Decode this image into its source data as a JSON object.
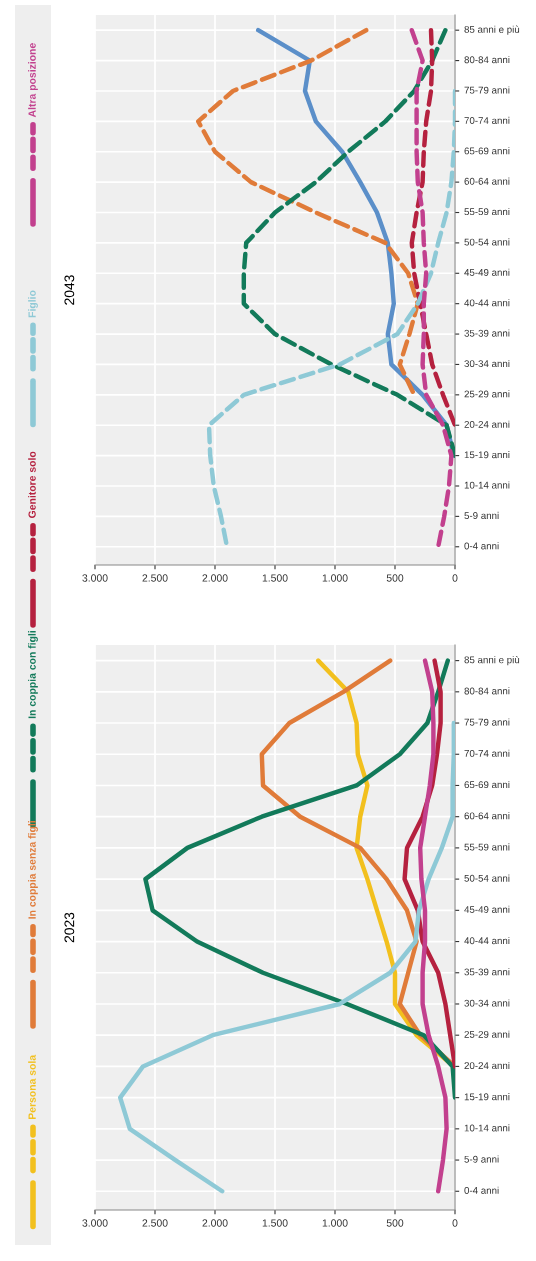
{
  "chart_data": [
    {
      "type": "line",
      "orientation": "horizontal",
      "title": "2023",
      "legend": "top",
      "grid": true,
      "categories": [
        "85 anni e più",
        "80-84 anni",
        "75-79 anni",
        "70-74 anni",
        "65-69 anni",
        "60-64 anni",
        "55-59 anni",
        "50-54 anni",
        "45-49 anni",
        "40-44 anni",
        "35-39 anni",
        "30-34 anni",
        "25-29 anni",
        "20-24 anni",
        "15-19 anni",
        "10-14 anni",
        "5-9 anni",
        "0-4 anni"
      ],
      "xlim": [
        3000,
        0
      ],
      "xticks": [
        {
          "value": 3000,
          "label": "3.000"
        },
        {
          "value": 2500,
          "label": "2.500"
        },
        {
          "value": 2000,
          "label": "2.000"
        },
        {
          "value": 1500,
          "label": "1.500"
        },
        {
          "value": 1000,
          "label": "1.000"
        },
        500,
        0
      ],
      "series": [
        {
          "name": "Persona sola",
          "color": "#f2c01e",
          "line_style": "solid",
          "values": [
            1140,
            890,
            820,
            810,
            730,
            790,
            820,
            730,
            650,
            570,
            500,
            500,
            320,
            10,
            null,
            null,
            null,
            null
          ]
        },
        {
          "name": "In coppia senza figli",
          "color": "#e07b39",
          "line_style": "solid",
          "values": [
            540,
            930,
            1380,
            1610,
            1600,
            1290,
            790,
            570,
            400,
            320,
            390,
            460,
            290,
            0,
            null,
            null,
            null,
            null
          ]
        },
        {
          "name": "In coppia con figli",
          "color": "#127a5a",
          "line_style": "solid",
          "values": [
            60,
            140,
            230,
            460,
            820,
            1610,
            2230,
            2580,
            2520,
            2150,
            1600,
            900,
            260,
            20,
            0,
            null,
            null,
            null
          ]
        },
        {
          "name": "Genitore solo",
          "color": "#b5213f",
          "line_style": "solid",
          "values": [
            170,
            120,
            120,
            150,
            190,
            270,
            400,
            420,
            310,
            270,
            140,
            80,
            40,
            0,
            null,
            null,
            null,
            null
          ]
        },
        {
          "name": "Figlio",
          "color": "#8ec9d6",
          "line_style": "solid",
          "values": [
            null,
            null,
            10,
            10,
            20,
            20,
            110,
            220,
            300,
            330,
            540,
            960,
            2020,
            2600,
            2790,
            2710,
            2330,
            1940
          ]
        },
        {
          "name": "Altra posizione",
          "color": "#c2408e",
          "line_style": "solid",
          "values": [
            250,
            190,
            180,
            180,
            210,
            250,
            290,
            280,
            250,
            250,
            270,
            270,
            220,
            140,
            80,
            70,
            100,
            140
          ]
        }
      ]
    },
    {
      "type": "line",
      "orientation": "horizontal",
      "title": "2043",
      "grid": true,
      "categories": [
        "85 anni e più",
        "80-84 anni",
        "75-79 anni",
        "70-74 anni",
        "65-69 anni",
        "60-64 anni",
        "55-59 anni",
        "50-54 anni",
        "45-49 anni",
        "40-44 anni",
        "35-39 anni",
        "30-34 anni",
        "25-29 anni",
        "20-24 anni",
        "15-19 anni",
        "10-14 anni",
        "5-9 anni",
        "0-4 anni"
      ],
      "xlim": [
        3000,
        0
      ],
      "xticks": [
        {
          "value": 3000,
          "label": "3.000"
        },
        {
          "value": 2500,
          "label": "2.500"
        },
        {
          "value": 2000,
          "label": "2.000"
        },
        {
          "value": 1500,
          "label": "1.500"
        },
        {
          "value": 1000,
          "label": "1.000"
        },
        500,
        0
      ],
      "series": [
        {
          "color": "#5b8fc9",
          "line_style": "solid",
          "values": [
            1640,
            1210,
            1250,
            1160,
            940,
            790,
            650,
            560,
            530,
            510,
            560,
            530,
            270,
            70,
            10,
            null,
            null,
            null
          ]
        },
        {
          "color": "#e07b39",
          "line_style": "dashed",
          "values": [
            740,
            1200,
            1850,
            2140,
            2000,
            1700,
            1160,
            580,
            390,
            310,
            380,
            460,
            340,
            null,
            null,
            null,
            null,
            null
          ]
        },
        {
          "color": "#127a5a",
          "line_style": "dashed",
          "values": [
            80,
            190,
            340,
            580,
            890,
            1160,
            1500,
            1740,
            1760,
            1760,
            1500,
            1030,
            480,
            70,
            0,
            null,
            null,
            null
          ]
        },
        {
          "color": "#b5213f",
          "line_style": "dashed",
          "values": [
            200,
            190,
            200,
            240,
            260,
            270,
            320,
            360,
            340,
            290,
            240,
            190,
            100,
            0,
            null,
            null,
            null,
            null
          ]
        },
        {
          "color": "#8ec9d6",
          "line_style": "dashed",
          "values": [
            null,
            null,
            0,
            0,
            10,
            30,
            70,
            140,
            200,
            310,
            480,
            960,
            1760,
            2050,
            2040,
            2010,
            1950,
            1900
          ]
        },
        {
          "color": "#c2408e",
          "line_style": "dashed",
          "values": [
            360,
            270,
            320,
            320,
            320,
            310,
            270,
            260,
            240,
            260,
            260,
            270,
            240,
            100,
            30,
            50,
            90,
            140
          ]
        }
      ]
    }
  ]
}
